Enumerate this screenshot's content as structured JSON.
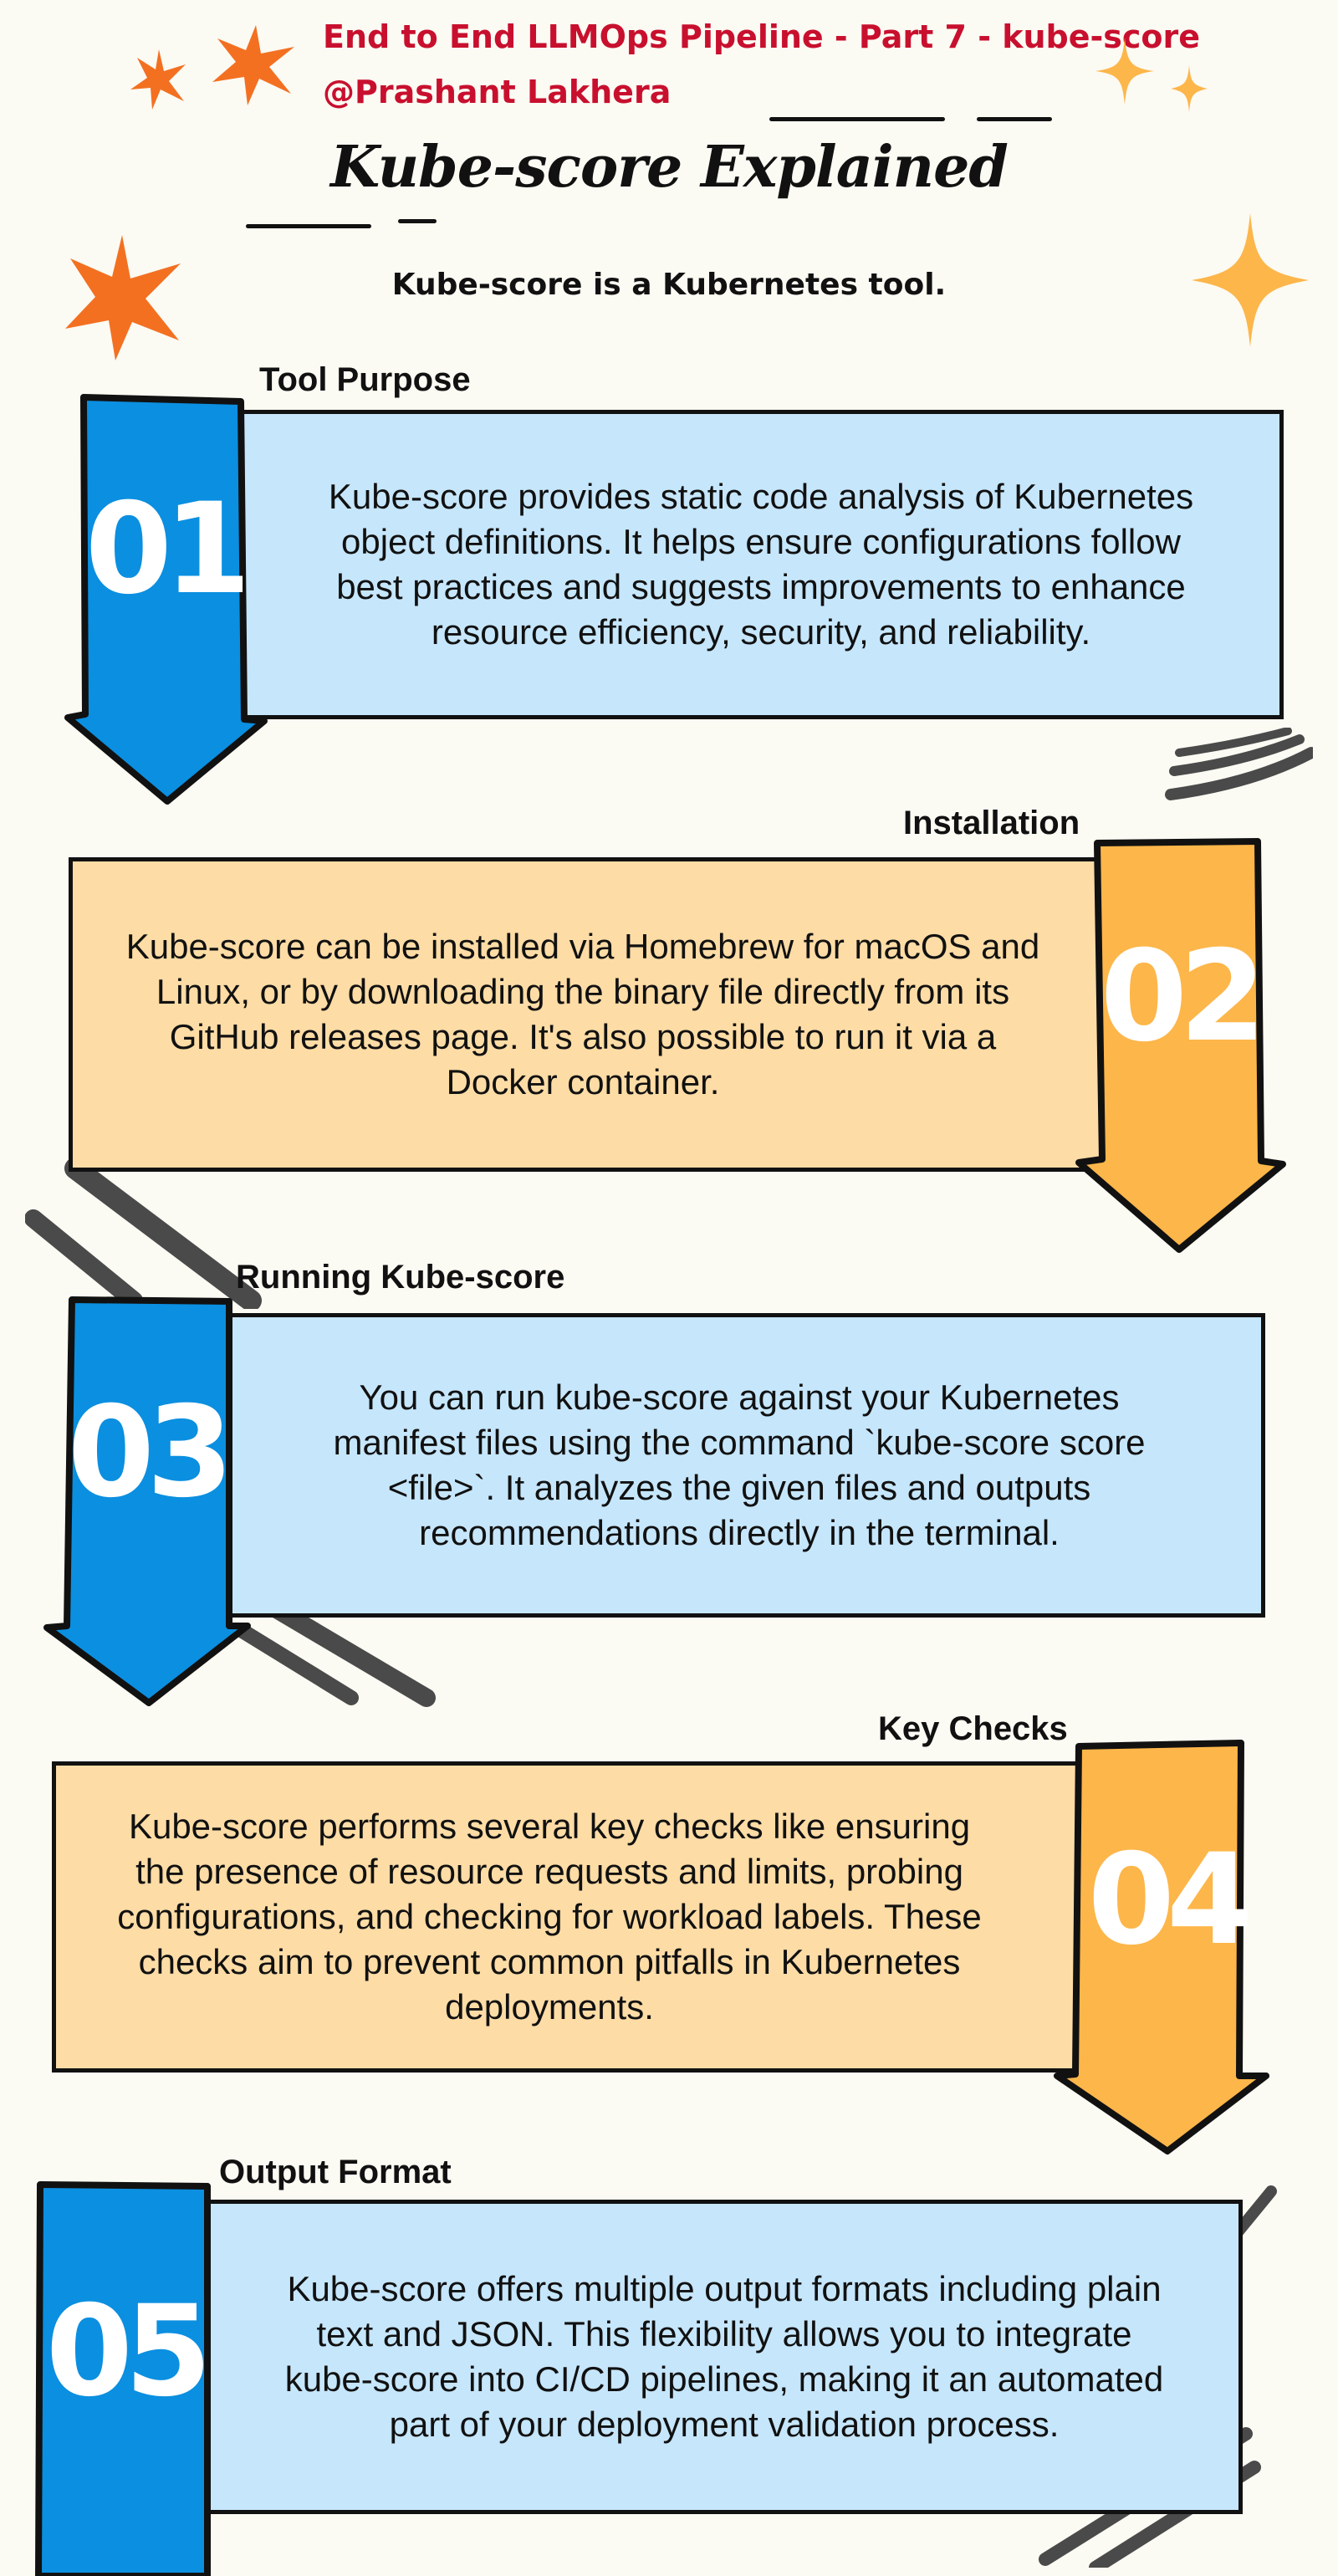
{
  "header": {
    "series_title": "End to End LLMOps Pipeline - Part 7 - kube-score",
    "author": "@Prashant Lakhera",
    "main_title": "Kube-score Explained",
    "subtitle": "Kube-score is a Kubernetes tool."
  },
  "sections": [
    {
      "number": "01",
      "label": "Tool Purpose",
      "text": "Kube-score provides static code analysis of Kubernetes object definitions. It helps ensure configurations follow best practices and suggests improvements to enhance resource efficiency, security, and reliability.",
      "color": "#0b8fe0"
    },
    {
      "number": "02",
      "label": "Installation",
      "text": "Kube-score can be installed via Homebrew for macOS and Linux, or by downloading the binary file directly from its GitHub releases page. It's also possible to run it via a Docker container.",
      "color": "#fdb64a"
    },
    {
      "number": "03",
      "label": "Running Kube-score",
      "text": "You can run kube-score against your Kubernetes manifest files using the command `kube-score score <file>`. It analyzes the given files and outputs recommendations directly in the terminal.",
      "color": "#0b8fe0"
    },
    {
      "number": "04",
      "label": "Key Checks",
      "text": "Kube-score performs several key checks like ensuring the presence of resource requests and limits, probing configurations, and checking for workload labels. These checks aim to prevent common pitfalls in Kubernetes deployments.",
      "color": "#fdb64a"
    },
    {
      "number": "05",
      "label": "Output Format",
      "text": "Kube-score offers multiple output formats including plain text and JSON. This flexibility allows you to integrate kube-score into CI/CD pipelines, making it an automated part of your deployment validation process.",
      "color": "#0b8fe0"
    }
  ],
  "colors": {
    "background": "#fbfaf3",
    "header_red": "#c8102e",
    "star_orange": "#f37021",
    "star_yellow": "#fdb64a",
    "card_blue": "#c6e6fb",
    "card_orange": "#fddca6"
  },
  "decorations": [
    "star-icon",
    "sparkle-icon",
    "swoosh-lines"
  ]
}
